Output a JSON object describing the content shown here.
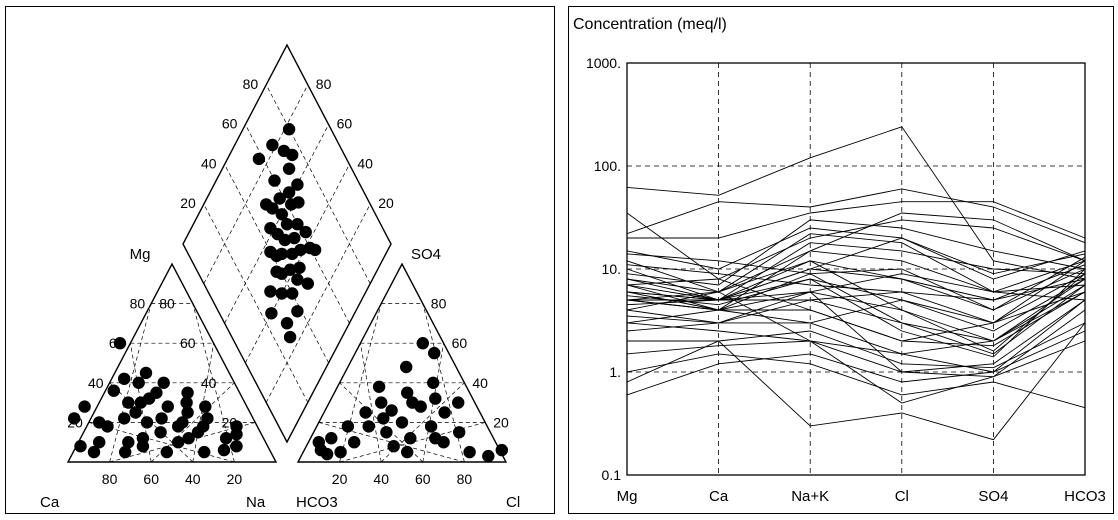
{
  "chart_data": [
    {
      "type": "scatter",
      "subtype": "piper-trilinear",
      "cation_triangle": {
        "apex_label": "Mg",
        "bottom_left_label": "Ca",
        "bottom_right_label": "Na",
        "base_ticks": [
          "80",
          "60",
          "40",
          "20"
        ],
        "side_ticks": [
          "20",
          "40",
          "60",
          "80"
        ],
        "points": [
          {
            "ca": 72,
            "mg": 18
          },
          {
            "ca": 62,
            "mg": 22
          },
          {
            "ca": 55,
            "mg": 25
          },
          {
            "ca": 50,
            "mg": 30
          },
          {
            "ca": 45,
            "mg": 32
          },
          {
            "ca": 40,
            "mg": 35
          },
          {
            "ca": 38,
            "mg": 28
          },
          {
            "ca": 35,
            "mg": 20
          },
          {
            "ca": 30,
            "mg": 25
          },
          {
            "ca": 28,
            "mg": 30
          },
          {
            "ca": 25,
            "mg": 35
          },
          {
            "ca": 22,
            "mg": 22
          },
          {
            "ca": 20,
            "mg": 28
          },
          {
            "ca": 48,
            "mg": 15
          },
          {
            "ca": 52,
            "mg": 20
          },
          {
            "ca": 58,
            "mg": 12
          },
          {
            "ca": 42,
            "mg": 10
          },
          {
            "ca": 36,
            "mg": 12
          },
          {
            "ca": 30,
            "mg": 15
          },
          {
            "ca": 26,
            "mg": 18
          },
          {
            "ca": 18,
            "mg": 12
          },
          {
            "ca": 15,
            "mg": 8
          },
          {
            "ca": 60,
            "mg": 8
          },
          {
            "ca": 66,
            "mg": 10
          },
          {
            "ca": 70,
            "mg": 5
          },
          {
            "ca": 75,
            "mg": 20
          },
          {
            "ca": 80,
            "mg": 10
          },
          {
            "ca": 85,
            "mg": 5
          },
          {
            "ca": 90,
            "mg": 8
          },
          {
            "ca": 46,
            "mg": 40
          },
          {
            "ca": 40,
            "mg": 45
          },
          {
            "ca": 52,
            "mg": 42
          },
          {
            "ca": 60,
            "mg": 36
          },
          {
            "ca": 44,
            "mg": 22
          },
          {
            "ca": 34,
            "mg": 40
          },
          {
            "ca": 32,
            "mg": 5
          },
          {
            "ca": 22,
            "mg": 6
          },
          {
            "ca": 50,
            "mg": 5
          },
          {
            "ca": 56,
            "mg": 30
          },
          {
            "ca": 38,
            "mg": 18
          },
          {
            "ca": 45,
            "mg": 60
          },
          {
            "ca": 10,
            "mg": 18
          },
          {
            "ca": 12,
            "mg": 14
          },
          {
            "ca": 86,
            "mg": 22
          },
          {
            "ca": 78,
            "mg": 28
          }
        ]
      },
      "anion_triangle": {
        "apex_label": "SO4",
        "bottom_left_label": "HCO3",
        "bottom_right_label": "Cl",
        "base_ticks": [
          "20",
          "40",
          "60",
          "80"
        ],
        "side_ticks": [
          "20",
          "40",
          "60",
          "80"
        ],
        "points": [
          {
            "cl": 10,
            "so4": 12
          },
          {
            "cl": 15,
            "so4": 18
          },
          {
            "cl": 20,
            "so4": 25
          },
          {
            "cl": 25,
            "so4": 30
          },
          {
            "cl": 30,
            "so4": 22
          },
          {
            "cl": 35,
            "so4": 15
          },
          {
            "cl": 40,
            "so4": 20
          },
          {
            "cl": 45,
            "so4": 28
          },
          {
            "cl": 50,
            "so4": 32
          },
          {
            "cl": 55,
            "so4": 18
          },
          {
            "cl": 60,
            "so4": 12
          },
          {
            "cl": 35,
            "so4": 35
          },
          {
            "cl": 30,
            "so4": 60
          },
          {
            "cl": 38,
            "so4": 55
          },
          {
            "cl": 28,
            "so4": 48
          },
          {
            "cl": 22,
            "so4": 10
          },
          {
            "cl": 18,
            "so4": 5
          },
          {
            "cl": 8,
            "so4": 6
          },
          {
            "cl": 12,
            "so4": 4
          },
          {
            "cl": 42,
            "so4": 8
          },
          {
            "cl": 48,
            "so4": 12
          },
          {
            "cl": 58,
            "so4": 25
          },
          {
            "cl": 65,
            "so4": 10
          },
          {
            "cl": 70,
            "so4": 15
          },
          {
            "cl": 62,
            "so4": 30
          },
          {
            "cl": 50,
            "so4": 5
          },
          {
            "cl": 90,
            "so4": 3
          },
          {
            "cl": 95,
            "so4": 6
          },
          {
            "cl": 80,
            "so4": 5
          },
          {
            "cl": 20,
            "so4": 38
          },
          {
            "cl": 45,
            "so4": 40
          },
          {
            "cl": 25,
            "so4": 18
          },
          {
            "cl": 32,
            "so4": 26
          },
          {
            "cl": 5,
            "so4": 10
          },
          {
            "cl": 40,
            "so4": 30
          }
        ]
      },
      "diamond": {
        "left_label": "Mg",
        "right_label": "SO4",
        "ticks_left": [
          "20",
          "40",
          "60",
          "80"
        ],
        "ticks_right": [
          "20",
          "40",
          "60",
          "80"
        ],
        "points": [
          {
            "left": 75,
            "right": 72
          },
          {
            "left": 70,
            "right": 75
          },
          {
            "left": 68,
            "right": 70
          },
          {
            "left": 72,
            "right": 60
          },
          {
            "left": 60,
            "right": 70
          },
          {
            "left": 62,
            "right": 64
          },
          {
            "left": 58,
            "right": 62
          },
          {
            "left": 55,
            "right": 66
          },
          {
            "left": 60,
            "right": 55
          },
          {
            "left": 55,
            "right": 55
          },
          {
            "left": 50,
            "right": 60
          },
          {
            "left": 52,
            "right": 50
          },
          {
            "left": 48,
            "right": 55
          },
          {
            "left": 45,
            "right": 50
          },
          {
            "left": 50,
            "right": 45
          },
          {
            "left": 42,
            "right": 45
          },
          {
            "left": 38,
            "right": 50
          },
          {
            "left": 35,
            "right": 40
          },
          {
            "left": 30,
            "right": 30
          },
          {
            "left": 25,
            "right": 28
          },
          {
            "left": 40,
            "right": 35
          },
          {
            "left": 45,
            "right": 40
          },
          {
            "left": 48,
            "right": 38
          },
          {
            "left": 52,
            "right": 42
          },
          {
            "left": 42,
            "right": 55
          },
          {
            "left": 38,
            "right": 60
          },
          {
            "left": 35,
            "right": 62
          },
          {
            "left": 57,
            "right": 48
          },
          {
            "left": 65,
            "right": 58
          },
          {
            "left": 62,
            "right": 46
          },
          {
            "left": 44,
            "right": 62
          },
          {
            "left": 66,
            "right": 52
          },
          {
            "left": 85,
            "right": 58
          },
          {
            "left": 82,
            "right": 68
          },
          {
            "left": 78,
            "right": 80
          },
          {
            "left": 56,
            "right": 40
          },
          {
            "left": 36,
            "right": 46
          },
          {
            "left": 30,
            "right": 50
          },
          {
            "left": 46,
            "right": 30
          },
          {
            "left": 40,
            "right": 25
          },
          {
            "left": 70,
            "right": 50
          },
          {
            "left": 28,
            "right": 38
          }
        ]
      }
    },
    {
      "type": "line",
      "subtype": "schoeller",
      "title": "Concentration (meq/l)",
      "yscale": "log",
      "ylim": [
        0.1,
        1000
      ],
      "yticks": [
        "0.1",
        "1.",
        "10.",
        "100.",
        "1000."
      ],
      "categories": [
        "Mg",
        "Ca",
        "Na+K",
        "Cl",
        "SO4",
        "HCO3"
      ],
      "grid": "dashed",
      "series": [
        {
          "values": [
            62,
            52,
            120,
            240,
            12,
            8
          ]
        },
        {
          "values": [
            22,
            45,
            40,
            60,
            40,
            18
          ]
        },
        {
          "values": [
            20,
            20,
            35,
            45,
            45,
            20
          ]
        },
        {
          "values": [
            35,
            8,
            20,
            30,
            25,
            12
          ]
        },
        {
          "values": [
            15,
            10,
            25,
            20,
            8,
            15
          ]
        },
        {
          "values": [
            12,
            6,
            15,
            12,
            6,
            12
          ]
        },
        {
          "values": [
            10,
            5,
            10,
            8,
            4,
            10
          ]
        },
        {
          "values": [
            8,
            5,
            8,
            5,
            3,
            9
          ]
        },
        {
          "values": [
            7,
            4,
            6,
            4,
            2,
            8
          ]
        },
        {
          "values": [
            6,
            5,
            5,
            3,
            1.5,
            7
          ]
        },
        {
          "values": [
            5,
            4,
            4,
            2,
            1.8,
            6
          ]
        },
        {
          "values": [
            4,
            3,
            3,
            1.5,
            1,
            5
          ]
        },
        {
          "values": [
            3,
            2.5,
            2,
            1,
            0.9,
            4
          ]
        },
        {
          "values": [
            2,
            2,
            0.3,
            0.4,
            0.22,
            3
          ]
        },
        {
          "values": [
            1.5,
            1.8,
            2,
            0.5,
            0.9,
            2
          ]
        },
        {
          "values": [
            1,
            1.5,
            1.2,
            0.6,
            0.8,
            0.45
          ]
        },
        {
          "values": [
            0.6,
            1.2,
            1.5,
            0.8,
            1,
            2.5
          ]
        },
        {
          "values": [
            0.8,
            2,
            2.5,
            1.2,
            1.1,
            3
          ]
        },
        {
          "values": [
            5,
            6,
            12,
            8,
            5,
            8
          ]
        },
        {
          "values": [
            6,
            5,
            18,
            15,
            10,
            9
          ]
        },
        {
          "values": [
            9,
            7,
            30,
            25,
            15,
            10
          ]
        },
        {
          "values": [
            4,
            6,
            22,
            18,
            6,
            7
          ]
        },
        {
          "values": [
            3,
            4,
            9,
            3,
            2,
            6
          ]
        },
        {
          "values": [
            5,
            5,
            6,
            1,
            1.2,
            5
          ]
        },
        {
          "values": [
            7,
            8,
            4,
            2,
            3,
            12
          ]
        },
        {
          "values": [
            11,
            9,
            7,
            6,
            5,
            11
          ]
        },
        {
          "values": [
            14,
            12,
            9,
            10,
            4,
            13
          ]
        },
        {
          "values": [
            2.5,
            3,
            5,
            6,
            3,
            6
          ]
        },
        {
          "values": [
            6,
            4,
            3,
            5,
            2.5,
            8
          ]
        },
        {
          "values": [
            4.5,
            5,
            12,
            4,
            1.6,
            9
          ]
        },
        {
          "values": [
            8,
            6,
            2,
            1.5,
            2,
            7
          ]
        },
        {
          "values": [
            5.5,
            4.5,
            8,
            2.5,
            1.4,
            10
          ]
        },
        {
          "values": [
            3.5,
            3,
            6,
            9,
            6,
            5
          ]
        },
        {
          "values": [
            7,
            5,
            10,
            20,
            9,
            14
          ]
        },
        {
          "values": [
            5,
            4,
            15,
            35,
            30,
            12
          ]
        }
      ]
    }
  ]
}
